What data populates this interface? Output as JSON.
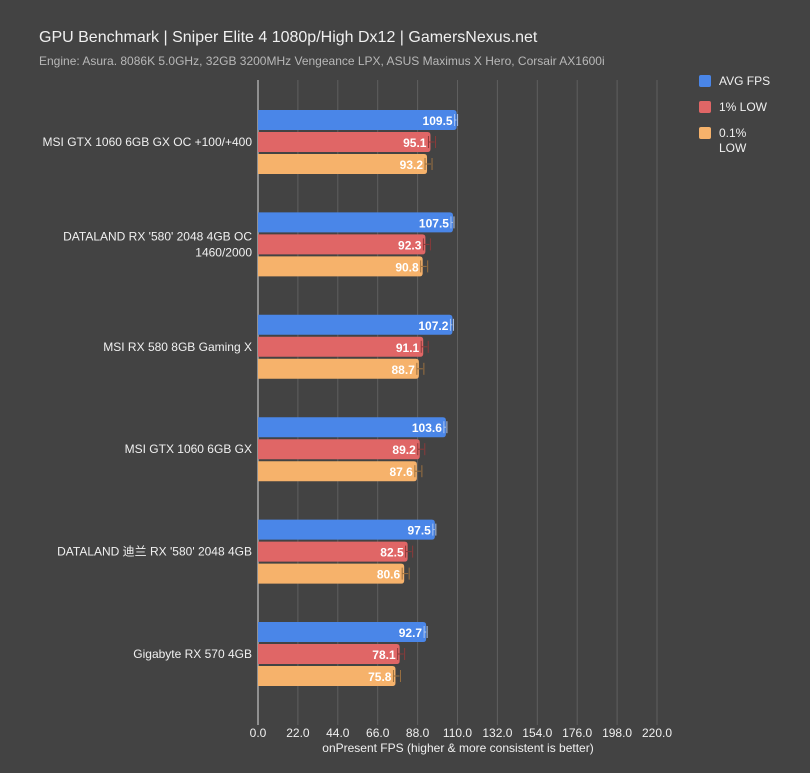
{
  "chart_data": {
    "type": "bar",
    "orientation": "horizontal",
    "title": "GPU Benchmark | Sniper Elite 4 1080p/High Dx12 | GamersNexus.net",
    "subtitle": "Engine: Asura. 8086K 5.0GHz, 32GB 3200MHz Vengeance LPX, ASUS Maximus X Hero, Corsair AX1600i",
    "xlabel": "onPresent FPS (higher & more consistent is better)",
    "ylabel": "",
    "xlim": [
      0,
      220
    ],
    "xticks": [
      "0.0",
      "22.0",
      "44.0",
      "66.0",
      "88.0",
      "110.0",
      "132.0",
      "154.0",
      "176.0",
      "198.0",
      "220.0"
    ],
    "grid": true,
    "legend_position": "top-right",
    "categories": [
      [
        "MSI GTX 1060 6GB GX OC +100/+400"
      ],
      [
        "DATALAND RX '580' 2048 4GB OC",
        "1460/2000"
      ],
      [
        "MSI RX 580 8GB Gaming X"
      ],
      [
        "MSI GTX 1060 6GB GX"
      ],
      [
        "DATALAND 迪兰 RX '580' 2048 4GB"
      ],
      [
        "Gigabyte RX 570 4GB"
      ]
    ],
    "series": [
      {
        "name": "AVG FPS",
        "color": "#4a86e8",
        "values": [
          109.5,
          107.5,
          107.2,
          103.6,
          97.5,
          92.7
        ]
      },
      {
        "name": "1% LOW",
        "color": "#e06666",
        "values": [
          95.1,
          92.3,
          91.1,
          89.2,
          82.5,
          78.1
        ]
      },
      {
        "name": "0.1% LOW",
        "legend_lines": [
          "0.1%",
          "LOW"
        ],
        "color": "#f6b26b",
        "values": [
          93.2,
          90.8,
          88.7,
          87.6,
          80.6,
          75.8
        ]
      }
    ]
  }
}
